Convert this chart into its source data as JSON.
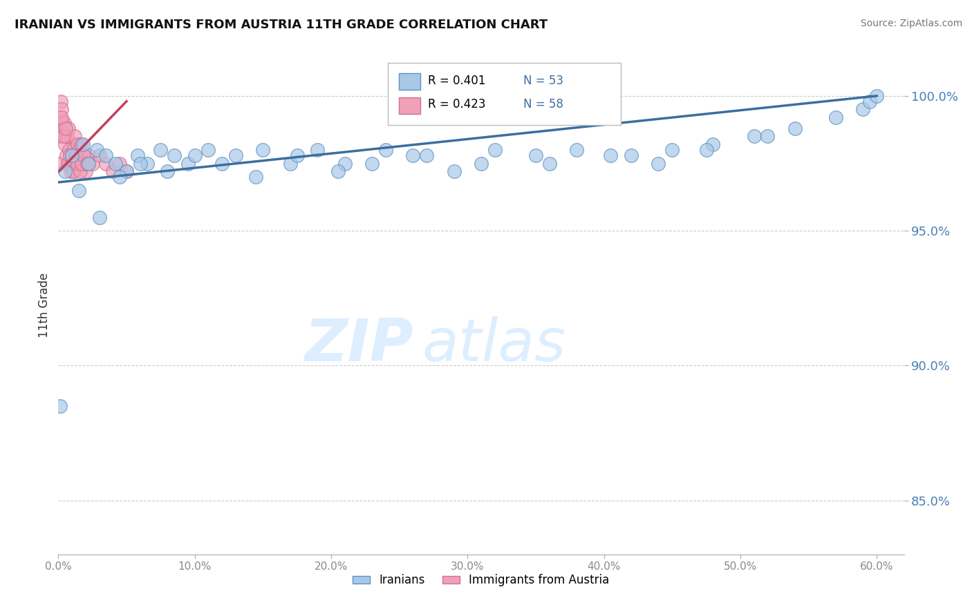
{
  "title": "IRANIAN VS IMMIGRANTS FROM AUSTRIA 11TH GRADE CORRELATION CHART",
  "source": "Source: ZipAtlas.com",
  "ylabel": "11th Grade",
  "yticks": [
    85.0,
    90.0,
    95.0,
    100.0
  ],
  "ytick_labels": [
    "85.0%",
    "90.0%",
    "95.0%",
    "100.0%"
  ],
  "xticks": [
    0,
    10,
    20,
    30,
    40,
    50,
    60
  ],
  "xtick_labels": [
    "0.0%",
    "10.0%",
    "20.0%",
    "30.0%",
    "40.0%",
    "50.0%",
    "60.0%"
  ],
  "xlim": [
    0.0,
    62.0
  ],
  "ylim": [
    83.0,
    101.5
  ],
  "legend_r1": "R = 0.401",
  "legend_n1": "N = 53",
  "legend_r2": "R = 0.423",
  "legend_n2": "N = 58",
  "color_blue": "#a8c8e8",
  "color_pink": "#f0a0b8",
  "color_line_blue": "#3a6fa0",
  "color_line_pink": "#c04060",
  "watermark_zip": "ZIP",
  "watermark_atlas": "atlas",
  "watermark_color": "#ddeeff",
  "iranians_x": [
    0.15,
    0.5,
    1.0,
    1.5,
    1.8,
    2.2,
    2.8,
    3.5,
    4.2,
    5.0,
    5.8,
    6.5,
    7.5,
    8.5,
    9.5,
    11.0,
    13.0,
    15.0,
    17.0,
    19.0,
    21.0,
    24.0,
    27.0,
    31.0,
    35.0,
    38.0,
    42.0,
    45.0,
    48.0,
    51.0,
    54.0,
    57.0,
    59.0,
    59.5,
    60.0,
    3.0,
    4.5,
    6.0,
    8.0,
    10.0,
    12.0,
    14.5,
    17.5,
    20.5,
    23.0,
    26.0,
    29.0,
    32.0,
    36.0,
    40.5,
    44.0,
    47.5,
    52.0
  ],
  "iranians_y": [
    88.5,
    97.2,
    97.8,
    96.5,
    98.2,
    97.5,
    98.0,
    97.8,
    97.5,
    97.2,
    97.8,
    97.5,
    98.0,
    97.8,
    97.5,
    98.0,
    97.8,
    98.0,
    97.5,
    98.0,
    97.5,
    98.0,
    97.8,
    97.5,
    97.8,
    98.0,
    97.8,
    98.0,
    98.2,
    98.5,
    98.8,
    99.2,
    99.5,
    99.8,
    100.0,
    95.5,
    97.0,
    97.5,
    97.2,
    97.8,
    97.5,
    97.0,
    97.8,
    97.2,
    97.5,
    97.8,
    97.2,
    98.0,
    97.5,
    97.8,
    97.5,
    98.0,
    98.5
  ],
  "austria_x": [
    0.05,
    0.1,
    0.15,
    0.2,
    0.25,
    0.3,
    0.35,
    0.4,
    0.45,
    0.5,
    0.55,
    0.6,
    0.65,
    0.7,
    0.75,
    0.8,
    0.85,
    0.9,
    0.95,
    1.0,
    1.05,
    1.1,
    1.15,
    1.2,
    1.25,
    1.3,
    1.35,
    1.4,
    1.45,
    1.5,
    1.55,
    1.6,
    1.65,
    1.7,
    1.75,
    1.8,
    1.9,
    2.0,
    2.2,
    2.5,
    3.0,
    3.5,
    4.0,
    4.5,
    5.0,
    0.22,
    0.38,
    0.52,
    0.68,
    0.82,
    0.98,
    1.12,
    1.28,
    1.42,
    1.58,
    1.72,
    1.88,
    2.1
  ],
  "austria_y": [
    97.5,
    98.5,
    99.2,
    99.8,
    99.5,
    99.0,
    98.8,
    98.5,
    99.0,
    98.2,
    98.5,
    97.8,
    98.5,
    97.5,
    98.8,
    98.0,
    97.5,
    97.2,
    97.5,
    97.8,
    97.5,
    98.0,
    97.2,
    98.5,
    97.8,
    97.5,
    97.8,
    98.2,
    97.5,
    98.0,
    97.8,
    97.5,
    98.2,
    97.8,
    97.5,
    97.8,
    97.5,
    97.2,
    97.8,
    97.5,
    97.8,
    97.5,
    97.2,
    97.5,
    97.2,
    99.2,
    98.5,
    98.8,
    97.5,
    97.8,
    97.5,
    97.2,
    97.8,
    97.5,
    97.2,
    97.5,
    97.8,
    97.5
  ],
  "blue_trendline_x": [
    0.05,
    60.0
  ],
  "blue_trendline_y": [
    96.8,
    100.0
  ],
  "pink_trendline_x": [
    0.05,
    5.0
  ],
  "pink_trendline_y": [
    97.2,
    99.8
  ]
}
